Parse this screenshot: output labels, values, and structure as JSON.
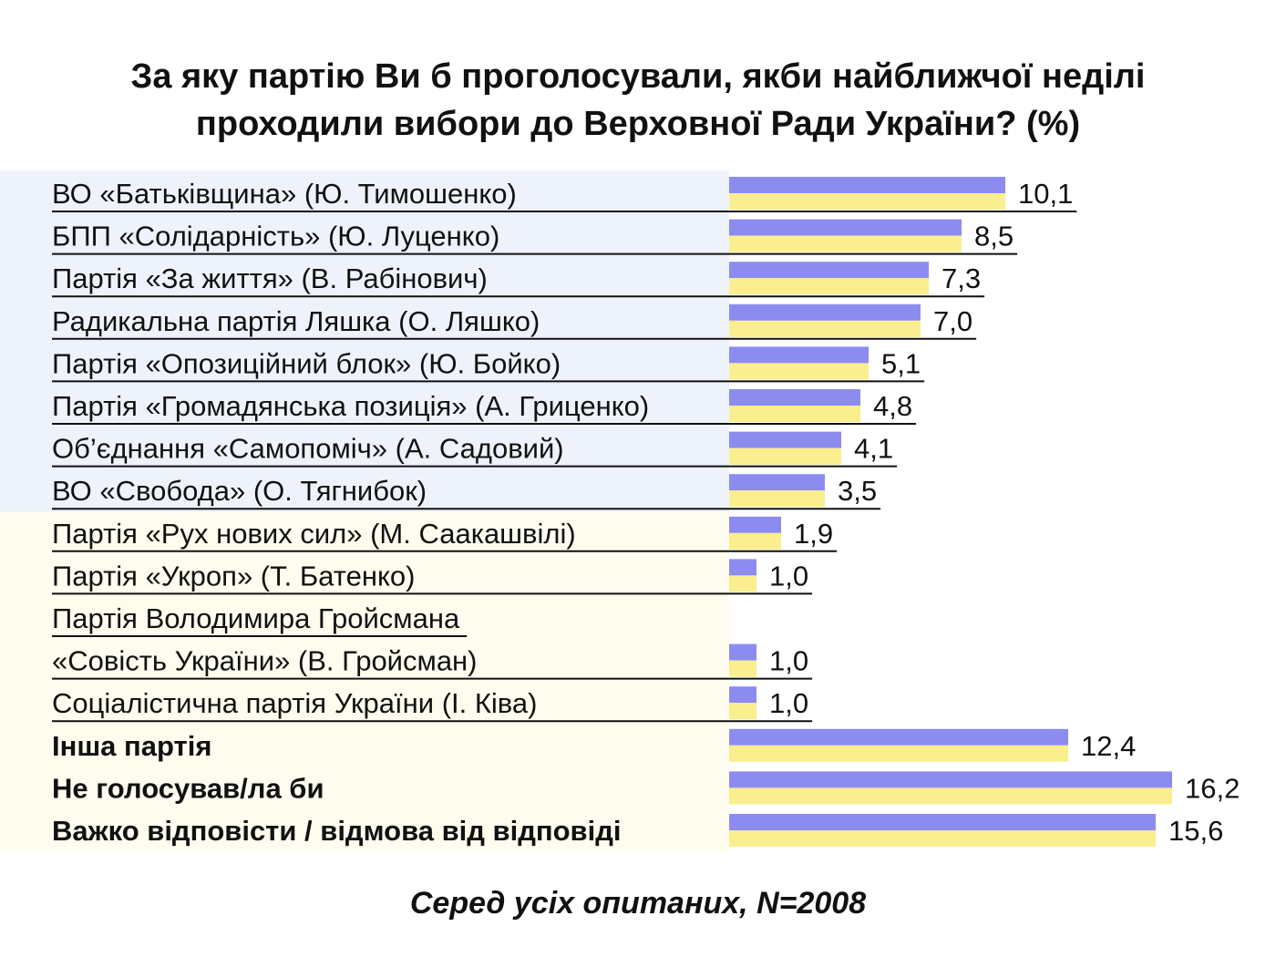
{
  "title": {
    "line1": "За яку партію Ви б проголосували, якби найближчої неділі",
    "line2": "проходили вибори до Верховної Ради України? (%)"
  },
  "footnote": "Серед усіх опитаних, N=2008",
  "colors": {
    "bar_top": "#8c8cf0",
    "bar_bottom": "#fbee8e",
    "band_blue": "#eef3fb",
    "band_yellow": "#fdfcee",
    "rule": "#111111"
  },
  "chart_data": {
    "type": "bar",
    "orientation": "horizontal",
    "categories": [
      "ВО «Батьківщина» (Ю. Тимошенко)",
      "БПП «Солідарність» (Ю. Луценко)",
      "Партія «За життя» (В. Рабінович)",
      "Радикальна партія Ляшка (О. Ляшко)",
      "Партія «Опозиційний блок» (Ю. Бойко)",
      "Партія «Громадянська позиція» (А. Гриценко)",
      "Об’єднання «Самопоміч» (А. Садовий)",
      "ВО «Свобода» (О. Тягнибок)",
      "Партія «Рух нових сил» (М. Саакашвілі)",
      "Партія «Укроп» (Т. Батенко)",
      "Партія Володимира Гройсмана «Совість України» (В. Гройсман)",
      "Соціалістична партія України (І. Ківа)",
      "Інша партія",
      "Не голосував/ла би",
      "Важко відповісти / відмова від відповіді"
    ],
    "values": [
      10.1,
      8.5,
      7.3,
      7.0,
      5.1,
      4.8,
      4.1,
      3.5,
      1.9,
      1.0,
      1.0,
      1.0,
      12.4,
      16.2,
      15.6
    ],
    "value_labels": [
      "10,1",
      "8,5",
      "7,3",
      "7,0",
      "5,1",
      "4,8",
      "4,1",
      "3,5",
      "1,9",
      "1,0",
      "1,0",
      "1,0",
      "12,4",
      "16,2",
      "15,6"
    ],
    "label_lines": [
      [
        "ВО «Батьківщина» (Ю. Тимошенко)"
      ],
      [
        "БПП «Солідарність» (Ю. Луценко)"
      ],
      [
        "Партія «За життя» (В. Рабінович)"
      ],
      [
        "Радикальна партія Ляшка (О. Ляшко)"
      ],
      [
        "Партія «Опозиційний блок» (Ю. Бойко)"
      ],
      [
        "Партія «Громадянська позиція» (А. Гриценко)"
      ],
      [
        "Об’єднання «Самопоміч» (А. Садовий)"
      ],
      [
        "ВО «Свобода» (О. Тягнибок)"
      ],
      [
        "Партія «Рух нових сил» (М. Саакашвілі)"
      ],
      [
        "Партія «Укроп» (Т. Батенко)"
      ],
      [
        "Партія Володимира Гройсмана",
        "«Совість України» (В. Гройсман)"
      ],
      [
        "Соціалістична партія України (І. Ківа)"
      ],
      [
        "Інша партія"
      ],
      [
        "Не голосував/ла би"
      ],
      [
        "Важко відповісти / відмова від відповіді"
      ]
    ],
    "bold_categories": [
      "Інша партія",
      "Не голосував/ла би",
      "Важко відповісти / відмова від відповіді"
    ],
    "underlined": [
      true,
      true,
      true,
      true,
      true,
      true,
      true,
      true,
      true,
      true,
      true,
      true,
      false,
      false,
      false
    ],
    "xlabel": "",
    "ylabel": "",
    "xlim": [
      0,
      16.2
    ],
    "grid": false,
    "legend": "none"
  }
}
